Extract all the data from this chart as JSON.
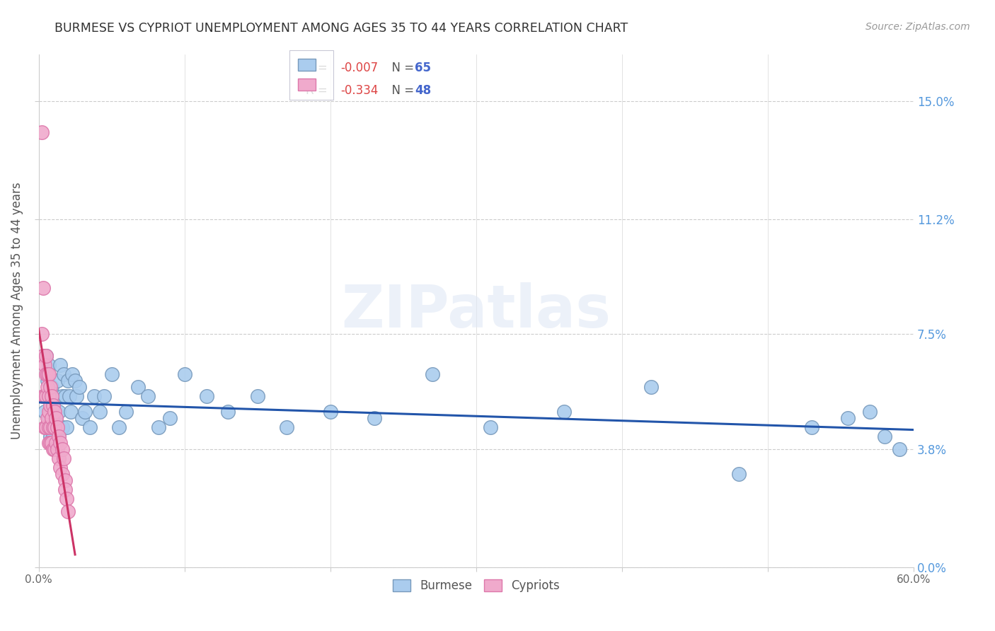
{
  "title": "BURMESE VS CYPRIOT UNEMPLOYMENT AMONG AGES 35 TO 44 YEARS CORRELATION CHART",
  "source": "Source: ZipAtlas.com",
  "ylabel": "Unemployment Among Ages 35 to 44 years",
  "xlim": [
    0.0,
    0.6
  ],
  "ylim": [
    0.0,
    0.165
  ],
  "xticks": [
    0.0,
    0.1,
    0.2,
    0.3,
    0.4,
    0.5,
    0.6
  ],
  "xticklabels_bottom_left": "0.0%",
  "xticklabels_bottom_right": "60.0%",
  "yticks": [
    0.0,
    0.038,
    0.075,
    0.112,
    0.15
  ],
  "yticklabels": [
    "0.0%",
    "3.8%",
    "7.5%",
    "11.2%",
    "15.0%"
  ],
  "right_ytick_color": "#5599dd",
  "burmese_color": "#aaccee",
  "cypriot_color": "#f0aacc",
  "burmese_edge_color": "#7799bb",
  "cypriot_edge_color": "#dd77aa",
  "burmese_line_color": "#2255aa",
  "cypriot_line_color": "#cc3366",
  "legend_R_burmese": "-0.007",
  "legend_N_burmese": "65",
  "legend_R_cypriot": "-0.334",
  "legend_N_cypriot": "48",
  "legend_color_R": "#dd4444",
  "legend_color_N": "#4466cc",
  "watermark_text": "ZIPatlas",
  "burmese_x": [
    0.004,
    0.005,
    0.005,
    0.006,
    0.006,
    0.007,
    0.007,
    0.007,
    0.008,
    0.008,
    0.009,
    0.009,
    0.01,
    0.01,
    0.011,
    0.011,
    0.012,
    0.012,
    0.013,
    0.013,
    0.014,
    0.014,
    0.015,
    0.016,
    0.016,
    0.017,
    0.018,
    0.019,
    0.02,
    0.021,
    0.022,
    0.023,
    0.025,
    0.026,
    0.028,
    0.03,
    0.032,
    0.035,
    0.038,
    0.042,
    0.045,
    0.05,
    0.055,
    0.06,
    0.068,
    0.075,
    0.082,
    0.09,
    0.1,
    0.115,
    0.13,
    0.15,
    0.17,
    0.2,
    0.23,
    0.27,
    0.31,
    0.36,
    0.42,
    0.48,
    0.53,
    0.555,
    0.57,
    0.58,
    0.59
  ],
  "burmese_y": [
    0.05,
    0.068,
    0.055,
    0.06,
    0.045,
    0.065,
    0.055,
    0.048,
    0.05,
    0.042,
    0.058,
    0.045,
    0.05,
    0.042,
    0.055,
    0.045,
    0.048,
    0.04,
    0.06,
    0.045,
    0.05,
    0.042,
    0.065,
    0.055,
    0.045,
    0.062,
    0.055,
    0.045,
    0.06,
    0.055,
    0.05,
    0.062,
    0.06,
    0.055,
    0.058,
    0.048,
    0.05,
    0.045,
    0.055,
    0.05,
    0.055,
    0.062,
    0.045,
    0.05,
    0.058,
    0.055,
    0.045,
    0.048,
    0.062,
    0.055,
    0.05,
    0.055,
    0.045,
    0.05,
    0.048,
    0.062,
    0.045,
    0.05,
    0.058,
    0.03,
    0.045,
    0.048,
    0.05,
    0.042,
    0.038
  ],
  "cypriot_x": [
    0.002,
    0.002,
    0.003,
    0.003,
    0.003,
    0.004,
    0.004,
    0.004,
    0.005,
    0.005,
    0.005,
    0.005,
    0.006,
    0.006,
    0.006,
    0.007,
    0.007,
    0.007,
    0.007,
    0.007,
    0.008,
    0.008,
    0.008,
    0.008,
    0.009,
    0.009,
    0.009,
    0.01,
    0.01,
    0.01,
    0.011,
    0.011,
    0.011,
    0.012,
    0.012,
    0.013,
    0.013,
    0.014,
    0.014,
    0.015,
    0.015,
    0.016,
    0.016,
    0.017,
    0.018,
    0.018,
    0.019,
    0.02
  ],
  "cypriot_y": [
    0.14,
    0.075,
    0.09,
    0.068,
    0.055,
    0.065,
    0.055,
    0.045,
    0.068,
    0.062,
    0.055,
    0.045,
    0.062,
    0.058,
    0.048,
    0.062,
    0.055,
    0.05,
    0.045,
    0.04,
    0.058,
    0.052,
    0.045,
    0.04,
    0.055,
    0.048,
    0.04,
    0.052,
    0.045,
    0.038,
    0.05,
    0.045,
    0.038,
    0.048,
    0.04,
    0.045,
    0.038,
    0.042,
    0.035,
    0.04,
    0.032,
    0.038,
    0.03,
    0.035,
    0.028,
    0.025,
    0.022,
    0.018
  ]
}
